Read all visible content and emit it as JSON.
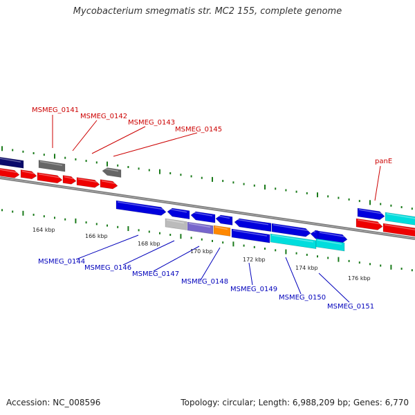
{
  "title": "Mycobacterium smegmatis str. MC2 155, complete genome",
  "footer": {
    "accession": "Accession: NC_008596",
    "topology": "Topology: circular; Length: 6,988,209 bp; Genes: 6,770"
  },
  "colors": {
    "upper_label": "#cc0000",
    "lower_label": "#0000bb",
    "tick": "#1a7a1a",
    "backbone": "#777777",
    "red": "#ee0000",
    "blue": "#0000dd",
    "navy": "#0a0a6a",
    "grey": "#666666",
    "light_grey": "#bbbbbb",
    "purple": "#7766cc",
    "orange": "#ff8800",
    "cyan": "#00dddd"
  },
  "ruler_labels": [
    "164 kbp",
    "166 kbp",
    "168 kbp",
    "170 kbp",
    "172 kbp",
    "174 kbp",
    "176 kbp"
  ],
  "upper_genes": [
    "MSMEG_0141",
    "MSMEG_0142",
    "MSMEG_0143",
    "MSMEG_0145",
    "panE"
  ],
  "lower_genes": [
    "MSMEG_0144",
    "MSMEG_0146",
    "MSMEG_0147",
    "MSMEG_0148",
    "MSMEG_0149",
    "MSMEG_0150",
    "MSMEG_0151"
  ]
}
